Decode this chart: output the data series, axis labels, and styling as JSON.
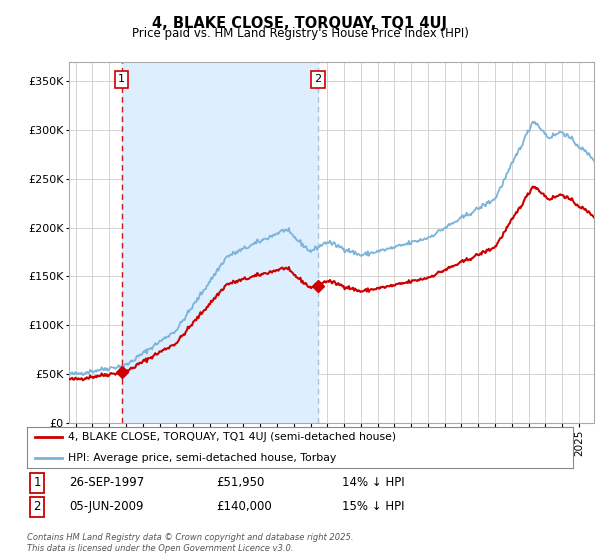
{
  "title": "4, BLAKE CLOSE, TORQUAY, TQ1 4UJ",
  "subtitle": "Price paid vs. HM Land Registry's House Price Index (HPI)",
  "background_color": "#ffffff",
  "plot_bg_color": "#ffffff",
  "shade_color": "#ddeeff",
  "grid_color": "#cccccc",
  "hpi_color": "#7ab4d8",
  "price_color": "#cc0000",
  "vline1_color": "#cc0000",
  "vline2_color": "#aabbcc",
  "sale1_date_x": 1997.73,
  "sale1_price": 51950,
  "sale1_label": "1",
  "sale2_date_x": 2009.43,
  "sale2_price": 140000,
  "sale2_label": "2",
  "legend_line1": "4, BLAKE CLOSE, TORQUAY, TQ1 4UJ (semi-detached house)",
  "legend_line2": "HPI: Average price, semi-detached house, Torbay",
  "footnote": "Contains HM Land Registry data © Crown copyright and database right 2025.\nThis data is licensed under the Open Government Licence v3.0.",
  "ylim": [
    0,
    370000
  ],
  "yticks": [
    0,
    50000,
    100000,
    150000,
    200000,
    250000,
    300000,
    350000
  ],
  "ytick_labels": [
    "£0",
    "£50K",
    "£100K",
    "£150K",
    "£200K",
    "£250K",
    "£300K",
    "£350K"
  ],
  "xlim_start": 1994.6,
  "xlim_end": 2025.9
}
